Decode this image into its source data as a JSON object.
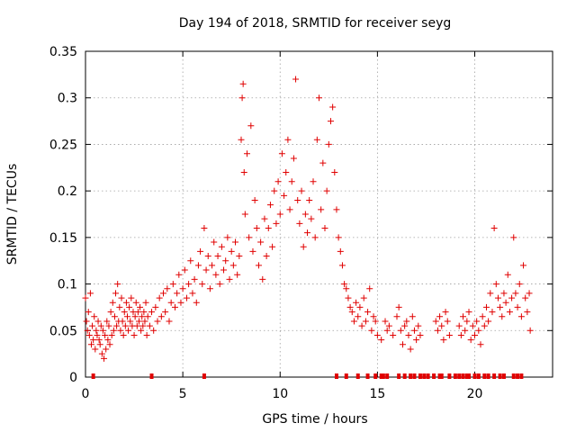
{
  "chart_data": {
    "type": "scatter",
    "title": "Day 194 of 2018, SRMTID for receiver seyg",
    "xlabel": "GPS time / hours",
    "ylabel": "SRMTID / TECUs",
    "xlim": [
      0,
      24
    ],
    "ylim": [
      0,
      0.35
    ],
    "xticks": [
      0,
      5,
      10,
      15,
      20
    ],
    "xtick_labels": [
      "0",
      "5",
      "10",
      "15",
      "20"
    ],
    "yticks": [
      0,
      0.05,
      0.1,
      0.15,
      0.2,
      0.25,
      0.3,
      0.35
    ],
    "ytick_labels": [
      "0",
      "0.05",
      "0.1",
      "0.15",
      "0.2",
      "0.25",
      "0.3",
      "0.35"
    ],
    "grid": true,
    "marker": "plus",
    "color": "#e00000",
    "series": [
      {
        "name": "SRMTID",
        "points": [
          [
            0.0,
            0.085
          ],
          [
            0.05,
            0.06
          ],
          [
            0.1,
            0.05
          ],
          [
            0.15,
            0.07
          ],
          [
            0.2,
            0.045
          ],
          [
            0.25,
            0.09
          ],
          [
            0.3,
            0.035
          ],
          [
            0.35,
            0.055
          ],
          [
            0.4,
            0.04
          ],
          [
            0.45,
            0.065
          ],
          [
            0.5,
            0.03
          ],
          [
            0.55,
            0.05
          ],
          [
            0.6,
            0.045
          ],
          [
            0.65,
            0.06
          ],
          [
            0.7,
            0.04
          ],
          [
            0.75,
            0.035
          ],
          [
            0.8,
            0.055
          ],
          [
            0.85,
            0.025
          ],
          [
            0.9,
            0.05
          ],
          [
            0.95,
            0.02
          ],
          [
            1.0,
            0.045
          ],
          [
            1.05,
            0.03
          ],
          [
            1.1,
            0.06
          ],
          [
            1.15,
            0.04
          ],
          [
            1.2,
            0.055
          ],
          [
            1.25,
            0.035
          ],
          [
            1.3,
            0.07
          ],
          [
            1.35,
            0.045
          ],
          [
            1.4,
            0.08
          ],
          [
            1.45,
            0.05
          ],
          [
            1.5,
            0.065
          ],
          [
            1.55,
            0.09
          ],
          [
            1.6,
            0.055
          ],
          [
            1.65,
            0.1
          ],
          [
            1.7,
            0.06
          ],
          [
            1.75,
            0.075
          ],
          [
            1.8,
            0.05
          ],
          [
            1.85,
            0.085
          ],
          [
            1.9,
            0.06
          ],
          [
            1.95,
            0.045
          ],
          [
            2.0,
            0.07
          ],
          [
            2.05,
            0.055
          ],
          [
            2.1,
            0.08
          ],
          [
            2.15,
            0.065
          ],
          [
            2.2,
            0.05
          ],
          [
            2.25,
            0.075
          ],
          [
            2.3,
            0.06
          ],
          [
            2.35,
            0.085
          ],
          [
            2.4,
            0.055
          ],
          [
            2.45,
            0.07
          ],
          [
            2.5,
            0.045
          ],
          [
            2.55,
            0.065
          ],
          [
            2.6,
            0.08
          ],
          [
            2.65,
            0.055
          ],
          [
            2.7,
            0.07
          ],
          [
            2.75,
            0.06
          ],
          [
            2.8,
            0.075
          ],
          [
            2.85,
            0.05
          ],
          [
            2.9,
            0.065
          ],
          [
            2.95,
            0.055
          ],
          [
            3.0,
            0.07
          ],
          [
            3.05,
            0.06
          ],
          [
            3.1,
            0.08
          ],
          [
            3.15,
            0.045
          ],
          [
            3.2,
            0.065
          ],
          [
            3.3,
            0.055
          ],
          [
            3.4,
            0.07
          ],
          [
            3.5,
            0.05
          ],
          [
            3.6,
            0.075
          ],
          [
            3.7,
            0.06
          ],
          [
            3.8,
            0.085
          ],
          [
            3.9,
            0.065
          ],
          [
            4.0,
            0.09
          ],
          [
            4.1,
            0.07
          ],
          [
            4.2,
            0.095
          ],
          [
            4.3,
            0.06
          ],
          [
            4.4,
            0.08
          ],
          [
            4.5,
            0.1
          ],
          [
            4.6,
            0.075
          ],
          [
            4.7,
            0.09
          ],
          [
            4.8,
            0.11
          ],
          [
            4.9,
            0.08
          ],
          [
            5.0,
            0.095
          ],
          [
            5.1,
            0.115
          ],
          [
            5.2,
            0.085
          ],
          [
            5.3,
            0.1
          ],
          [
            5.4,
            0.125
          ],
          [
            5.5,
            0.09
          ],
          [
            5.6,
            0.105
          ],
          [
            5.7,
            0.08
          ],
          [
            5.8,
            0.12
          ],
          [
            5.9,
            0.135
          ],
          [
            6.0,
            0.1
          ],
          [
            6.1,
            0.16
          ],
          [
            6.2,
            0.115
          ],
          [
            6.3,
            0.13
          ],
          [
            6.4,
            0.095
          ],
          [
            6.5,
            0.12
          ],
          [
            6.6,
            0.145
          ],
          [
            6.7,
            0.11
          ],
          [
            6.8,
            0.13
          ],
          [
            6.9,
            0.1
          ],
          [
            7.0,
            0.14
          ],
          [
            7.1,
            0.115
          ],
          [
            7.2,
            0.125
          ],
          [
            7.3,
            0.15
          ],
          [
            7.4,
            0.105
          ],
          [
            7.5,
            0.135
          ],
          [
            7.6,
            0.12
          ],
          [
            7.7,
            0.145
          ],
          [
            7.8,
            0.11
          ],
          [
            7.9,
            0.13
          ],
          [
            8.0,
            0.255
          ],
          [
            8.05,
            0.3
          ],
          [
            8.1,
            0.315
          ],
          [
            8.15,
            0.22
          ],
          [
            8.2,
            0.175
          ],
          [
            8.3,
            0.24
          ],
          [
            8.4,
            0.15
          ],
          [
            8.5,
            0.27
          ],
          [
            8.6,
            0.135
          ],
          [
            8.7,
            0.19
          ],
          [
            8.8,
            0.16
          ],
          [
            8.9,
            0.12
          ],
          [
            9.0,
            0.145
          ],
          [
            9.1,
            0.105
          ],
          [
            9.2,
            0.17
          ],
          [
            9.3,
            0.13
          ],
          [
            9.4,
            0.16
          ],
          [
            9.5,
            0.185
          ],
          [
            9.6,
            0.14
          ],
          [
            9.7,
            0.2
          ],
          [
            9.8,
            0.165
          ],
          [
            9.9,
            0.21
          ],
          [
            10.0,
            0.175
          ],
          [
            10.1,
            0.24
          ],
          [
            10.2,
            0.195
          ],
          [
            10.3,
            0.22
          ],
          [
            10.4,
            0.255
          ],
          [
            10.5,
            0.18
          ],
          [
            10.6,
            0.21
          ],
          [
            10.7,
            0.235
          ],
          [
            10.8,
            0.32
          ],
          [
            10.9,
            0.19
          ],
          [
            11.0,
            0.165
          ],
          [
            11.1,
            0.2
          ],
          [
            11.2,
            0.14
          ],
          [
            11.3,
            0.175
          ],
          [
            11.4,
            0.155
          ],
          [
            11.5,
            0.19
          ],
          [
            11.6,
            0.17
          ],
          [
            11.7,
            0.21
          ],
          [
            11.8,
            0.15
          ],
          [
            11.9,
            0.255
          ],
          [
            12.0,
            0.3
          ],
          [
            12.1,
            0.18
          ],
          [
            12.2,
            0.23
          ],
          [
            12.3,
            0.16
          ],
          [
            12.4,
            0.2
          ],
          [
            12.5,
            0.25
          ],
          [
            12.6,
            0.275
          ],
          [
            12.7,
            0.29
          ],
          [
            12.8,
            0.22
          ],
          [
            12.9,
            0.18
          ],
          [
            13.0,
            0.15
          ],
          [
            13.1,
            0.135
          ],
          [
            13.2,
            0.12
          ],
          [
            13.3,
            0.1
          ],
          [
            13.4,
            0.095
          ],
          [
            13.5,
            0.085
          ],
          [
            13.6,
            0.075
          ],
          [
            13.7,
            0.07
          ],
          [
            13.8,
            0.06
          ],
          [
            13.9,
            0.08
          ],
          [
            14.0,
            0.065
          ],
          [
            14.1,
            0.075
          ],
          [
            14.2,
            0.055
          ],
          [
            14.3,
            0.085
          ],
          [
            14.4,
            0.06
          ],
          [
            14.5,
            0.07
          ],
          [
            14.6,
            0.095
          ],
          [
            14.7,
            0.05
          ],
          [
            14.8,
            0.065
          ],
          [
            14.9,
            0.06
          ],
          [
            15.0,
            0.045
          ],
          [
            15.2,
            0.04
          ],
          [
            15.4,
            0.06
          ],
          [
            15.5,
            0.05
          ],
          [
            15.6,
            0.055
          ],
          [
            15.8,
            0.045
          ],
          [
            16.0,
            0.065
          ],
          [
            16.1,
            0.075
          ],
          [
            16.2,
            0.05
          ],
          [
            16.3,
            0.035
          ],
          [
            16.4,
            0.055
          ],
          [
            16.5,
            0.06
          ],
          [
            16.6,
            0.045
          ],
          [
            16.7,
            0.03
          ],
          [
            16.8,
            0.065
          ],
          [
            16.9,
            0.05
          ],
          [
            17.0,
            0.04
          ],
          [
            17.1,
            0.055
          ],
          [
            17.2,
            0.045
          ],
          [
            18.0,
            0.06
          ],
          [
            18.1,
            0.05
          ],
          [
            18.2,
            0.065
          ],
          [
            18.3,
            0.055
          ],
          [
            18.4,
            0.04
          ],
          [
            18.5,
            0.07
          ],
          [
            18.6,
            0.06
          ],
          [
            18.7,
            0.045
          ],
          [
            19.2,
            0.055
          ],
          [
            19.3,
            0.045
          ],
          [
            19.4,
            0.065
          ],
          [
            19.5,
            0.05
          ],
          [
            19.6,
            0.06
          ],
          [
            19.7,
            0.07
          ],
          [
            19.8,
            0.04
          ],
          [
            19.9,
            0.055
          ],
          [
            20.0,
            0.045
          ],
          [
            20.1,
            0.06
          ],
          [
            20.2,
            0.05
          ],
          [
            20.3,
            0.035
          ],
          [
            20.4,
            0.065
          ],
          [
            20.5,
            0.055
          ],
          [
            20.6,
            0.075
          ],
          [
            20.7,
            0.06
          ],
          [
            20.8,
            0.09
          ],
          [
            20.9,
            0.07
          ],
          [
            21.0,
            0.16
          ],
          [
            21.1,
            0.1
          ],
          [
            21.2,
            0.085
          ],
          [
            21.3,
            0.075
          ],
          [
            21.4,
            0.065
          ],
          [
            21.5,
            0.09
          ],
          [
            21.6,
            0.08
          ],
          [
            21.7,
            0.11
          ],
          [
            21.8,
            0.07
          ],
          [
            21.9,
            0.085
          ],
          [
            22.0,
            0.15
          ],
          [
            22.1,
            0.09
          ],
          [
            22.2,
            0.075
          ],
          [
            22.3,
            0.1
          ],
          [
            22.4,
            0.065
          ],
          [
            22.5,
            0.12
          ],
          [
            22.6,
            0.085
          ],
          [
            22.7,
            0.07
          ],
          [
            22.8,
            0.09
          ],
          [
            22.85,
            0.05
          ]
        ]
      }
    ],
    "baseline_markers_x": [
      0.4,
      3.4,
      6.1,
      12.9,
      13.4,
      14.0,
      14.5,
      14.9,
      15.2,
      15.3,
      15.5,
      16.1,
      16.4,
      16.7,
      16.9,
      17.2,
      17.4,
      17.6,
      17.9,
      18.2,
      18.3,
      18.7,
      19.0,
      19.2,
      19.4,
      19.6,
      19.7,
      20.0,
      20.2,
      20.5,
      20.7,
      21.0,
      21.3,
      21.5,
      22.0,
      22.2,
      22.4
    ]
  }
}
